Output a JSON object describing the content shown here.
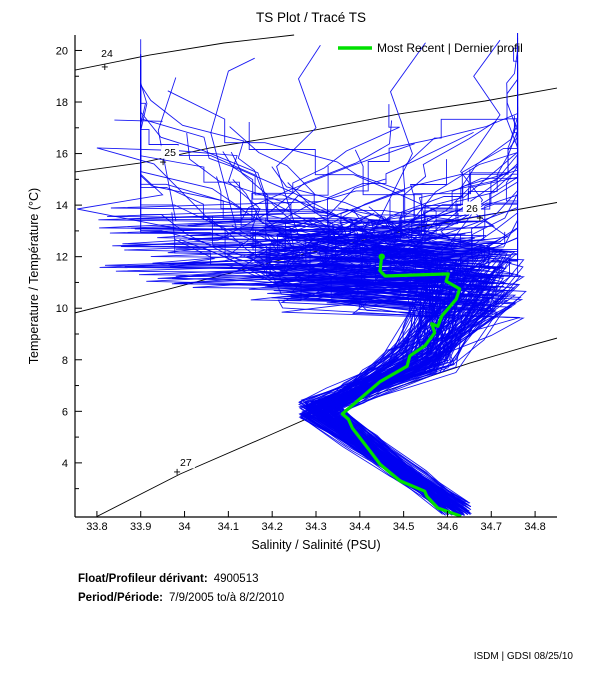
{
  "title": "TS Plot / Tracé TS",
  "legend": {
    "label": "Most Recent | Dernier profil",
    "line_color": "#00e100"
  },
  "axes": {
    "x": {
      "label": "Salinity / Salinité (PSU)",
      "ticks": [
        33.8,
        33.9,
        34,
        34.1,
        34.2,
        34.3,
        34.4,
        34.5,
        34.6,
        34.7,
        34.8
      ],
      "tick_labels": [
        "33.8",
        "33.9",
        "34",
        "34.1",
        "34.2",
        "34.3",
        "34.4",
        "34.5",
        "34.6",
        "34.7",
        "34.8"
      ]
    },
    "y": {
      "label": "Temperature / Température (°C)",
      "ticks": [
        4,
        6,
        8,
        10,
        12,
        14,
        16,
        18,
        20
      ],
      "tick_labels": [
        "4",
        "6",
        "8",
        "10",
        "12",
        "14",
        "16",
        "18",
        "20"
      ],
      "minor_ticks": [
        3,
        5,
        7,
        9,
        11,
        13,
        15,
        17,
        19
      ]
    }
  },
  "footer": {
    "float_label": "Float/Profileur dérivant:",
    "float_value": "4900513",
    "period_label": "Period/Période:",
    "period_value": "7/9/2005  to/à  8/2/2010"
  },
  "watermark": "ISDM | GDSI  08/25/10",
  "chart_data": {
    "type": "line",
    "title": "TS Plot / Tracé TS",
    "xlabel": "Salinity / Salinité (PSU)",
    "ylabel": "Temperature / Température (°C)",
    "xlim": [
      33.75,
      34.85
    ],
    "ylim": [
      1.9,
      20.6
    ],
    "grid": false,
    "legend_position": "top-right-inside",
    "isopycnals": [
      {
        "label": "24",
        "points": [
          [
            33.75,
            19.24
          ],
          [
            33.92,
            19.82
          ],
          [
            34.09,
            20.29
          ],
          [
            34.25,
            20.6
          ]
        ],
        "label_at": [
          33.823,
          19.9
        ],
        "plus_at": [
          33.818,
          19.36
        ]
      },
      {
        "label": "25",
        "points": [
          [
            33.75,
            15.29
          ],
          [
            33.898,
            15.63
          ],
          [
            34.058,
            16.22
          ],
          [
            34.263,
            16.8
          ],
          [
            34.49,
            17.54
          ],
          [
            34.686,
            18.04
          ],
          [
            34.85,
            18.54
          ]
        ],
        "label_at": [
          33.967,
          16.06
        ],
        "plus_at": [
          33.951,
          15.67
        ]
      },
      {
        "label": "26",
        "points": [
          [
            33.75,
            9.82
          ],
          [
            33.974,
            10.79
          ],
          [
            34.263,
            12.07
          ],
          [
            34.537,
            13.15
          ],
          [
            34.85,
            14.1
          ]
        ],
        "label_at": [
          34.656,
          13.89
        ],
        "plus_at": [
          34.674,
          13.5
        ]
      },
      {
        "label": "27",
        "points": [
          [
            33.8,
            1.92
          ],
          [
            33.99,
            3.57
          ],
          [
            34.195,
            5.08
          ],
          [
            34.309,
            5.93
          ],
          [
            34.485,
            6.94
          ],
          [
            34.651,
            7.87
          ],
          [
            34.784,
            8.53
          ],
          [
            34.85,
            8.84
          ]
        ],
        "label_at": [
          34.003,
          4.04
        ],
        "plus_at": [
          33.983,
          3.65
        ]
      }
    ],
    "most_recent_profile": {
      "name": "Most Recent | Dernier profil",
      "color": "#00e100",
      "points_s_t": [
        [
          34.45,
          12.0
        ],
        [
          34.446,
          11.45
        ],
        [
          34.458,
          11.25
        ],
        [
          34.602,
          11.33
        ],
        [
          34.597,
          11.05
        ],
        [
          34.628,
          10.75
        ],
        [
          34.62,
          10.35
        ],
        [
          34.587,
          9.7
        ],
        [
          34.578,
          9.3
        ],
        [
          34.564,
          9.4
        ],
        [
          34.571,
          9.05
        ],
        [
          34.549,
          8.55
        ],
        [
          34.514,
          8.15
        ],
        [
          34.508,
          7.75
        ],
        [
          34.446,
          7.15
        ],
        [
          34.36,
          5.9
        ],
        [
          34.374,
          5.7
        ],
        [
          34.383,
          5.35
        ],
        [
          34.424,
          4.45
        ],
        [
          34.446,
          3.95
        ],
        [
          34.492,
          3.3
        ],
        [
          34.548,
          2.9
        ],
        [
          34.553,
          2.7
        ],
        [
          34.578,
          2.25
        ],
        [
          34.628,
          1.95
        ]
      ]
    },
    "ensemble": {
      "color": "#0000f2",
      "seed": 20100825,
      "count": 150,
      "bottom_s": [
        34.585,
        34.655
      ],
      "bottom_t": [
        1.95,
        2.5
      ],
      "hook_s": [
        34.26,
        34.35
      ],
      "hook_t": [
        5.7,
        6.45
      ],
      "mid_s": [
        34.45,
        34.62
      ],
      "mid_t": [
        7.5,
        8.4
      ],
      "shoulder_s": [
        34.52,
        34.78
      ],
      "shoulder_t": [
        9.6,
        12.2
      ],
      "blob_s": [
        34.14,
        34.74
      ],
      "left_excursion_s": [
        33.8,
        34.02
      ],
      "left_excursion_prob": 0.25,
      "tmax_range": [
        12.3,
        20.3
      ],
      "tmax_bias": 2.8,
      "fan_s_clamp": [
        33.9,
        34.76
      ]
    },
    "outlier_profiles": [
      [
        [
          34.07,
          13.2
        ],
        [
          33.93,
          15.6
        ],
        [
          33.8,
          16.22
        ],
        [
          33.98,
          16.12
        ],
        [
          34.12,
          15.92
        ],
        [
          34.1,
          14.9
        ],
        [
          34.17,
          13.9
        ]
      ],
      [
        [
          33.98,
          13.1
        ],
        [
          33.755,
          13.85
        ],
        [
          33.95,
          14.4
        ],
        [
          33.9,
          15.2
        ]
      ],
      [
        [
          34.12,
          13.0
        ],
        [
          34.06,
          16.8
        ],
        [
          34.1,
          19.2
        ],
        [
          34.16,
          19.7
        ]
      ],
      [
        [
          33.98,
          13.4
        ],
        [
          33.94,
          16.9
        ],
        [
          33.98,
          18.95
        ]
      ],
      [
        [
          34.42,
          12.6
        ],
        [
          34.52,
          16.0
        ],
        [
          34.47,
          18.4
        ],
        [
          34.55,
          20.3
        ]
      ],
      [
        [
          34.6,
          12.4
        ],
        [
          34.68,
          14.2
        ],
        [
          34.63,
          15.3
        ],
        [
          34.72,
          17.5
        ],
        [
          34.66,
          19.0
        ],
        [
          34.72,
          20.4
        ]
      ],
      [
        [
          33.84,
          17.3
        ],
        [
          33.95,
          17.25
        ]
      ],
      [
        [
          34.26,
          12.8
        ],
        [
          34.21,
          15.5
        ],
        [
          34.3,
          17.0
        ],
        [
          34.26,
          18.9
        ],
        [
          34.31,
          20.2
        ]
      ]
    ]
  }
}
